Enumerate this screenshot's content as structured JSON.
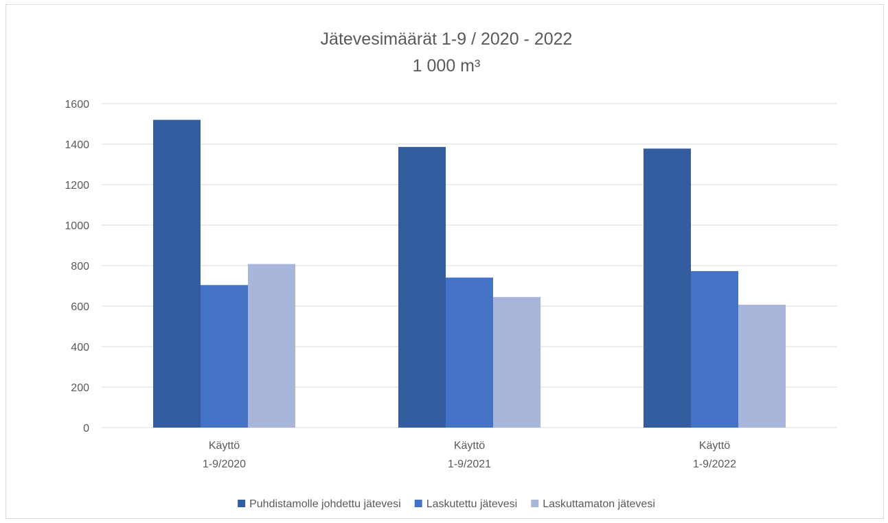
{
  "chart_data": {
    "type": "bar",
    "title": "Jätevesimäärät 1-9 / 2020 - 2022",
    "subtitle": "1 000 m³",
    "xlabel": "",
    "ylabel": "",
    "categories": [
      [
        "Käyttö",
        "1-9/2020"
      ],
      [
        "Käyttö",
        "1-9/2021"
      ],
      [
        "Käyttö",
        "1-9/2022"
      ]
    ],
    "series": [
      {
        "name": "Puhdistamolle johdettu jätevesi",
        "color": "#345da0",
        "values": [
          1520,
          1386,
          1378
        ]
      },
      {
        "name": "Laskutettu jätevesi",
        "color": "#4472c4",
        "values": [
          704,
          741,
          773
        ]
      },
      {
        "name": "Laskuttamaton jätevesi",
        "color": "#a9b6dc",
        "values": [
          808,
          645,
          607
        ]
      }
    ],
    "ylim": [
      0,
      1600
    ],
    "yticks": [
      0,
      200,
      400,
      600,
      800,
      1000,
      1200,
      1400,
      1600
    ],
    "grid": true,
    "legend_position": "bottom",
    "gridline_color": "#d9d9d9",
    "text_color": "#595959"
  }
}
